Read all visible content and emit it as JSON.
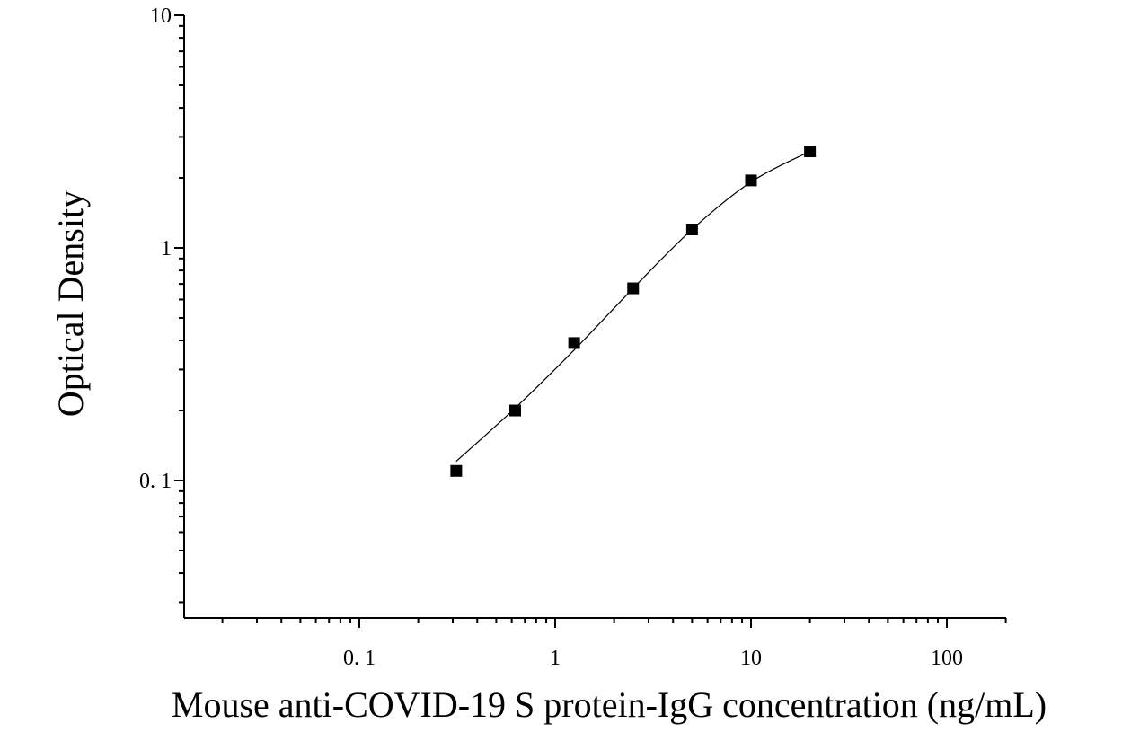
{
  "chart_data": {
    "type": "scatter",
    "title": "",
    "xlabel": "Mouse anti-COVID-19 S protein-IgG concentration (ng/mL)",
    "ylabel": "Optical Density",
    "x_scale": "log",
    "y_scale": "log",
    "xlim": [
      0.01,
      300
    ],
    "ylim": [
      0.03,
      10
    ],
    "x_ticks": [
      {
        "value": 0.1,
        "label": "0. 1"
      },
      {
        "value": 1,
        "label": "1"
      },
      {
        "value": 10,
        "label": "10"
      },
      {
        "value": 100,
        "label": "100"
      }
    ],
    "y_ticks": [
      {
        "value": 0.1,
        "label": "0. 1"
      },
      {
        "value": 1,
        "label": "1"
      },
      {
        "value": 10,
        "label": "10"
      }
    ],
    "grid": false,
    "legend": "none",
    "series": [
      {
        "points": [
          {
            "x": 0.3125,
            "y": 0.11
          },
          {
            "x": 0.625,
            "y": 0.2
          },
          {
            "x": 1.25,
            "y": 0.39
          },
          {
            "x": 2.5,
            "y": 0.67
          },
          {
            "x": 5,
            "y": 1.2
          },
          {
            "x": 10,
            "y": 1.95
          },
          {
            "x": 20,
            "y": 2.6
          }
        ],
        "marker": "square",
        "color": "#000000",
        "fit": "four-parameter logistic",
        "fit_curve": [
          {
            "x": 0.3125,
            "y": 0.121
          },
          {
            "x": 0.625,
            "y": 0.205
          },
          {
            "x": 1.25,
            "y": 0.364
          },
          {
            "x": 2.5,
            "y": 0.67
          },
          {
            "x": 5,
            "y": 1.2
          },
          {
            "x": 10,
            "y": 1.92
          },
          {
            "x": 20,
            "y": 2.6
          }
        ]
      }
    ]
  }
}
